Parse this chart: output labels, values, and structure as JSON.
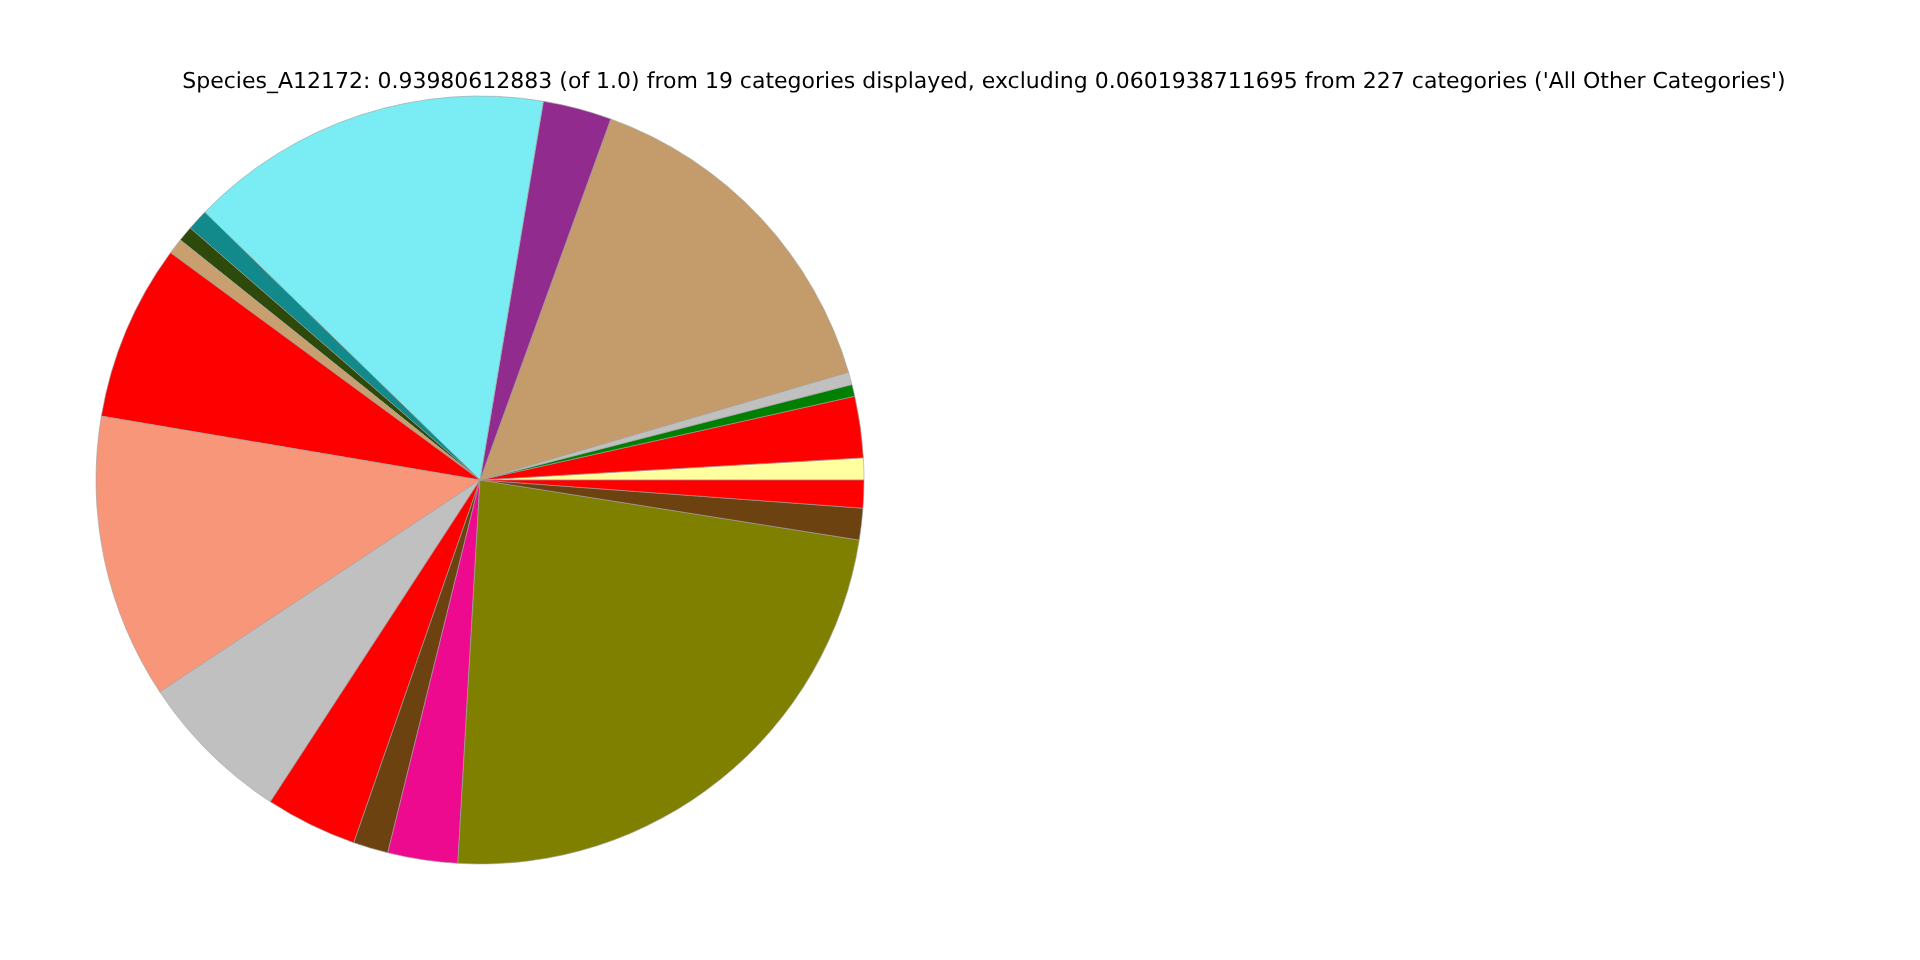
{
  "chart_data": {
    "type": "pie",
    "title": "Species_A12172: 0.93980612883 (of 1.0) from 19 categories displayed, excluding 0.0601938711695 from 227 categories ('All Other Categories')",
    "categories": [
      null,
      null,
      null,
      null,
      null,
      null,
      null,
      null,
      null,
      null,
      null,
      null,
      null,
      null,
      null,
      null,
      null,
      null,
      null
    ],
    "values": [
      0.92,
      2.58,
      0.5,
      0.53,
      14.94,
      2.89,
      15.36,
      0.89,
      0.64,
      0.67,
      7.42,
      11.97,
      6.5,
      3.86,
      1.47,
      2.94,
      23.42,
      1.33,
      1.17
    ],
    "colors": [
      "#ffffa0",
      "#ff0000",
      "#008000",
      "#c0c0c0",
      "#c49c6b",
      "#922b8e",
      "#7aecf4",
      "#128a8c",
      "#2e4a0b",
      "#c8a070",
      "#ff0000",
      "#f89679",
      "#c0c0c0",
      "#ff0000",
      "#6b4210",
      "#ee0a8f",
      "#808000",
      "#6b4210",
      "#ff0000"
    ]
  }
}
